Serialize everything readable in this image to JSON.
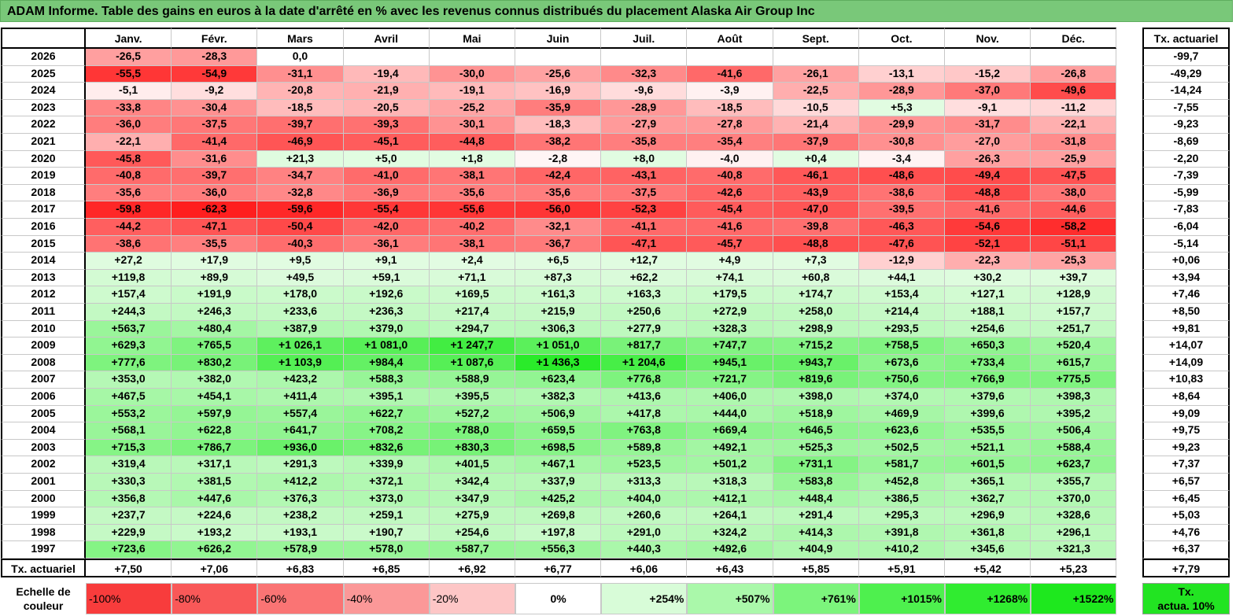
{
  "title": "ADAM Informe. Table des gains en euros à la date d'arrêté en % avec les revenus connus distribués du placement Alaska Air Group Inc",
  "months": [
    "Janv.",
    "Févr.",
    "Mars",
    "Avril",
    "Mai",
    "Juin",
    "Juil.",
    "Août",
    "Sept.",
    "Oct.",
    "Nov.",
    "Déc."
  ],
  "rate_header": "Tx. actuariel",
  "rows": [
    {
      "year": "2026",
      "values": [
        "-26,5",
        "-28,3",
        "0,0",
        "",
        "",
        "",
        "",
        "",
        "",
        "",
        "",
        ""
      ],
      "rate": "-99,7"
    },
    {
      "year": "2025",
      "values": [
        "-55,5",
        "-54,9",
        "-31,1",
        "-19,4",
        "-30,0",
        "-25,6",
        "-32,3",
        "-41,6",
        "-26,1",
        "-13,1",
        "-15,2",
        "-26,8"
      ],
      "rate": "-49,29"
    },
    {
      "year": "2024",
      "values": [
        "-5,1",
        "-9,2",
        "-20,8",
        "-21,9",
        "-19,1",
        "-16,9",
        "-9,6",
        "-3,9",
        "-22,5",
        "-28,9",
        "-37,0",
        "-49,6"
      ],
      "rate": "-14,24"
    },
    {
      "year": "2023",
      "values": [
        "-33,8",
        "-30,4",
        "-18,5",
        "-20,5",
        "-25,2",
        "-35,9",
        "-28,9",
        "-18,5",
        "-10,5",
        "+5,3",
        "-9,1",
        "-11,2"
      ],
      "rate": "-7,55"
    },
    {
      "year": "2022",
      "values": [
        "-36,0",
        "-37,5",
        "-39,7",
        "-39,3",
        "-30,1",
        "-18,3",
        "-27,9",
        "-27,8",
        "-21,4",
        "-29,9",
        "-31,7",
        "-22,1"
      ],
      "rate": "-9,23"
    },
    {
      "year": "2021",
      "values": [
        "-22,1",
        "-41,4",
        "-46,9",
        "-45,1",
        "-44,8",
        "-38,2",
        "-35,8",
        "-35,4",
        "-37,9",
        "-30,8",
        "-27,0",
        "-31,8"
      ],
      "rate": "-8,69"
    },
    {
      "year": "2020",
      "values": [
        "-45,8",
        "-31,6",
        "+21,3",
        "+5,0",
        "+1,8",
        "-2,8",
        "+8,0",
        "-4,0",
        "+0,4",
        "-3,4",
        "-26,3",
        "-25,9"
      ],
      "rate": "-2,20"
    },
    {
      "year": "2019",
      "values": [
        "-40,8",
        "-39,7",
        "-34,7",
        "-41,0",
        "-38,1",
        "-42,4",
        "-43,1",
        "-40,8",
        "-46,1",
        "-48,6",
        "-49,4",
        "-47,5"
      ],
      "rate": "-7,39"
    },
    {
      "year": "2018",
      "values": [
        "-35,6",
        "-36,0",
        "-32,8",
        "-36,9",
        "-35,6",
        "-35,6",
        "-37,5",
        "-42,6",
        "-43,9",
        "-38,6",
        "-48,8",
        "-38,0"
      ],
      "rate": "-5,99"
    },
    {
      "year": "2017",
      "values": [
        "-59,8",
        "-62,3",
        "-59,6",
        "-55,4",
        "-55,6",
        "-56,0",
        "-52,3",
        "-45,4",
        "-47,0",
        "-39,5",
        "-41,6",
        "-44,6"
      ],
      "rate": "-7,83"
    },
    {
      "year": "2016",
      "values": [
        "-44,2",
        "-47,1",
        "-50,4",
        "-42,0",
        "-40,2",
        "-32,1",
        "-41,1",
        "-41,6",
        "-39,8",
        "-46,3",
        "-54,6",
        "-58,2"
      ],
      "rate": "-6,04"
    },
    {
      "year": "2015",
      "values": [
        "-38,6",
        "-35,5",
        "-40,3",
        "-36,1",
        "-38,1",
        "-36,7",
        "-47,1",
        "-45,7",
        "-48,8",
        "-47,6",
        "-52,1",
        "-51,1"
      ],
      "rate": "-5,14"
    },
    {
      "year": "2014",
      "values": [
        "+27,2",
        "+17,9",
        "+9,5",
        "+9,1",
        "+2,4",
        "+6,5",
        "+12,7",
        "+4,9",
        "+7,3",
        "-12,9",
        "-22,3",
        "-25,3"
      ],
      "rate": "+0,06"
    },
    {
      "year": "2013",
      "values": [
        "+119,8",
        "+89,9",
        "+49,5",
        "+59,1",
        "+71,1",
        "+87,3",
        "+62,2",
        "+74,1",
        "+60,8",
        "+44,1",
        "+30,2",
        "+39,7"
      ],
      "rate": "+3,94"
    },
    {
      "year": "2012",
      "values": [
        "+157,4",
        "+191,9",
        "+178,0",
        "+192,6",
        "+169,5",
        "+161,3",
        "+163,3",
        "+179,5",
        "+174,7",
        "+153,4",
        "+127,1",
        "+128,9"
      ],
      "rate": "+7,46"
    },
    {
      "year": "2011",
      "values": [
        "+244,3",
        "+246,3",
        "+233,6",
        "+236,3",
        "+217,4",
        "+215,9",
        "+250,6",
        "+272,9",
        "+258,0",
        "+214,4",
        "+188,1",
        "+157,7"
      ],
      "rate": "+8,50"
    },
    {
      "year": "2010",
      "values": [
        "+563,7",
        "+480,4",
        "+387,9",
        "+379,0",
        "+294,7",
        "+306,3",
        "+277,9",
        "+328,3",
        "+298,9",
        "+293,5",
        "+254,6",
        "+251,7"
      ],
      "rate": "+9,81"
    },
    {
      "year": "2009",
      "values": [
        "+629,3",
        "+765,5",
        "+1 026,1",
        "+1 081,0",
        "+1 247,7",
        "+1 051,0",
        "+817,7",
        "+747,7",
        "+715,2",
        "+758,5",
        "+650,3",
        "+520,4"
      ],
      "rate": "+14,07"
    },
    {
      "year": "2008",
      "values": [
        "+777,6",
        "+830,2",
        "+1 103,9",
        "+984,4",
        "+1 087,6",
        "+1 436,3",
        "+1 204,6",
        "+945,1",
        "+943,7",
        "+673,6",
        "+733,4",
        "+615,7"
      ],
      "rate": "+14,09"
    },
    {
      "year": "2007",
      "values": [
        "+353,0",
        "+382,0",
        "+423,2",
        "+588,3",
        "+588,9",
        "+623,4",
        "+776,8",
        "+721,7",
        "+819,6",
        "+750,6",
        "+766,9",
        "+775,5"
      ],
      "rate": "+10,83"
    },
    {
      "year": "2006",
      "values": [
        "+467,5",
        "+454,1",
        "+411,4",
        "+395,1",
        "+395,5",
        "+382,3",
        "+413,6",
        "+406,0",
        "+398,0",
        "+374,0",
        "+379,6",
        "+398,3"
      ],
      "rate": "+8,64"
    },
    {
      "year": "2005",
      "values": [
        "+553,2",
        "+597,9",
        "+557,4",
        "+622,7",
        "+527,2",
        "+506,9",
        "+417,8",
        "+444,0",
        "+518,9",
        "+469,9",
        "+399,6",
        "+395,2"
      ],
      "rate": "+9,09"
    },
    {
      "year": "2004",
      "values": [
        "+568,1",
        "+622,8",
        "+641,7",
        "+708,2",
        "+788,0",
        "+659,5",
        "+763,8",
        "+669,4",
        "+646,5",
        "+623,6",
        "+535,5",
        "+506,4"
      ],
      "rate": "+9,75"
    },
    {
      "year": "2003",
      "values": [
        "+715,3",
        "+786,7",
        "+936,0",
        "+832,6",
        "+830,3",
        "+698,5",
        "+589,8",
        "+492,1",
        "+525,3",
        "+502,5",
        "+521,1",
        "+588,4"
      ],
      "rate": "+9,23"
    },
    {
      "year": "2002",
      "values": [
        "+319,4",
        "+317,1",
        "+291,3",
        "+339,9",
        "+401,5",
        "+467,1",
        "+523,5",
        "+501,2",
        "+731,1",
        "+581,7",
        "+601,5",
        "+623,7"
      ],
      "rate": "+7,37"
    },
    {
      "year": "2001",
      "values": [
        "+330,3",
        "+381,5",
        "+412,2",
        "+372,1",
        "+342,4",
        "+337,9",
        "+313,3",
        "+318,3",
        "+583,8",
        "+452,8",
        "+365,1",
        "+355,7"
      ],
      "rate": "+6,57"
    },
    {
      "year": "2000",
      "values": [
        "+356,8",
        "+447,6",
        "+376,3",
        "+373,0",
        "+347,9",
        "+425,2",
        "+404,0",
        "+412,1",
        "+448,4",
        "+386,5",
        "+362,7",
        "+370,0"
      ],
      "rate": "+6,45"
    },
    {
      "year": "1999",
      "values": [
        "+237,7",
        "+224,6",
        "+238,2",
        "+259,1",
        "+275,9",
        "+269,8",
        "+260,6",
        "+264,1",
        "+291,4",
        "+295,3",
        "+296,9",
        "+328,6"
      ],
      "rate": "+5,03"
    },
    {
      "year": "1998",
      "values": [
        "+229,9",
        "+193,2",
        "+193,1",
        "+190,7",
        "+254,6",
        "+197,8",
        "+291,0",
        "+324,2",
        "+414,3",
        "+391,8",
        "+361,8",
        "+296,1"
      ],
      "rate": "+4,76"
    },
    {
      "year": "1997",
      "values": [
        "+723,6",
        "+626,2",
        "+578,9",
        "+578,0",
        "+587,7",
        "+556,3",
        "+440,3",
        "+492,6",
        "+404,9",
        "+410,2",
        "+345,6",
        "+321,3"
      ],
      "rate": "+6,37"
    }
  ],
  "footer": {
    "label": "Tx. actuariel",
    "values": [
      "+7,50",
      "+7,06",
      "+6,83",
      "+6,85",
      "+6,92",
      "+6,77",
      "+6,06",
      "+6,43",
      "+5,85",
      "+5,91",
      "+5,42",
      "+5,23"
    ],
    "rate": "+7,79"
  },
  "legend": {
    "label_line1": "Echelle de",
    "label_line2": "couleur",
    "items": [
      {
        "text": "-100%",
        "color": "#f83c3c"
      },
      {
        "text": "-80%",
        "color": "#f95858"
      },
      {
        "text": "-60%",
        "color": "#fa7474"
      },
      {
        "text": "-40%",
        "color": "#fb9898"
      },
      {
        "text": "-20%",
        "color": "#fdc6c6"
      },
      {
        "text": "0%",
        "color": "#ffffff"
      },
      {
        "text": "+254%",
        "color": "#d8fcd8"
      },
      {
        "text": "+507%",
        "color": "#aaf8aa"
      },
      {
        "text": "+761%",
        "color": "#7cf47c"
      },
      {
        "text": "+1015%",
        "color": "#4ef04e"
      },
      {
        "text": "+1268%",
        "color": "#30ec30"
      },
      {
        "text": "+1522%",
        "color": "#1ee81e"
      }
    ],
    "rate_box_line1": "Tx.",
    "rate_box_line2": "actua. 10%",
    "rate_box_color": "#22e422"
  }
}
